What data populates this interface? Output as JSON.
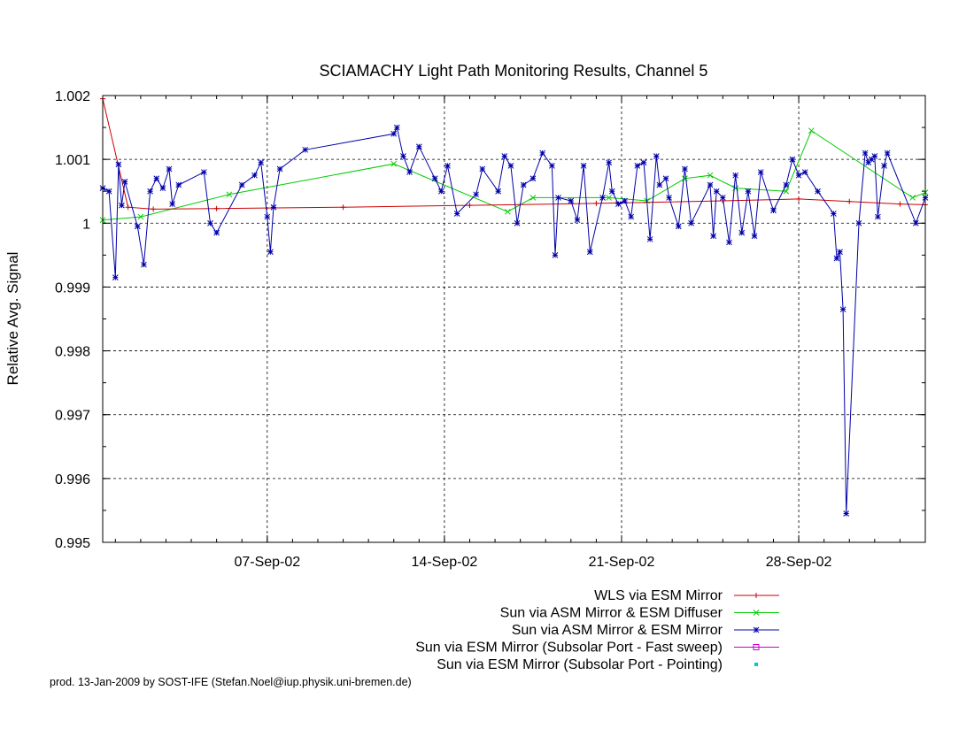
{
  "chart_data": {
    "type": "line",
    "title": "SCIAMACHY Light Path Monitoring Results, Channel 5",
    "xlabel": "",
    "ylabel": "Relative Avg. Signal",
    "xlim": [
      "2002-08-31T12:00",
      "2002-10-03T00:00"
    ],
    "ylim": [
      0.995,
      1.002
    ],
    "x_ticks": [
      {
        "date": "2002-09-07",
        "label": "07-Sep-02"
      },
      {
        "date": "2002-09-14",
        "label": "14-Sep-02"
      },
      {
        "date": "2002-09-21",
        "label": "21-Sep-02"
      },
      {
        "date": "2002-09-28",
        "label": "28-Sep-02"
      }
    ],
    "y_ticks": [
      {
        "value": 0.995,
        "label": "0.995"
      },
      {
        "value": 0.996,
        "label": "0.996"
      },
      {
        "value": 0.997,
        "label": "0.997"
      },
      {
        "value": 0.998,
        "label": "0.998"
      },
      {
        "value": 0.999,
        "label": "0.999"
      },
      {
        "value": 1.0,
        "label": "1"
      },
      {
        "value": 1.001,
        "label": "1.001"
      },
      {
        "value": 1.002,
        "label": "1.002"
      }
    ],
    "grid": true,
    "legend_position": "bottom-right",
    "series": [
      {
        "name": "WLS via ESM Mirror",
        "color": "#cc0000",
        "marker": "plus",
        "points": [
          [
            "2002-08-31T12:00",
            1.00195
          ],
          [
            "2002-09-01T12:00",
            1.00025
          ],
          [
            "2002-09-02T12:00",
            1.00022
          ],
          [
            "2002-09-05T00:00",
            1.00023
          ],
          [
            "2002-09-10T00:00",
            1.00025
          ],
          [
            "2002-09-15T00:00",
            1.00028
          ],
          [
            "2002-09-20T00:00",
            1.00031
          ],
          [
            "2002-09-25T00:00",
            1.00035
          ],
          [
            "2002-09-28T00:00",
            1.00038
          ],
          [
            "2002-09-30T00:00",
            1.00034
          ],
          [
            "2002-10-02T00:00",
            1.0003
          ],
          [
            "2002-10-03T00:00",
            1.00029
          ]
        ]
      },
      {
        "name": "Sun via ASM Mirror & ESM Diffuser",
        "color": "#00cc00",
        "marker": "cross",
        "points": [
          [
            "2002-08-31T12:00",
            1.00005
          ],
          [
            "2002-09-02T00:00",
            1.0001
          ],
          [
            "2002-09-05T12:00",
            1.00045
          ],
          [
            "2002-09-12T00:00",
            1.00093
          ],
          [
            "2002-09-16T12:00",
            1.00018
          ],
          [
            "2002-09-17T12:00",
            1.0004
          ],
          [
            "2002-09-20T12:00",
            1.0004
          ],
          [
            "2002-09-22T00:00",
            1.00035
          ],
          [
            "2002-09-23T12:00",
            1.0007
          ],
          [
            "2002-09-24T12:00",
            1.00075
          ],
          [
            "2002-09-25T12:00",
            1.00055
          ],
          [
            "2002-09-27T12:00",
            1.0005
          ],
          [
            "2002-09-28T12:00",
            1.00145
          ],
          [
            "2002-10-02T12:00",
            1.0004
          ],
          [
            "2002-10-03T00:00",
            1.00048
          ]
        ]
      },
      {
        "name": "Sun via ASM Mirror & ESM Mirror",
        "color": "#0000aa",
        "marker": "star",
        "points": [
          [
            "2002-08-31T12:00",
            1.00055
          ],
          [
            "2002-08-31T18:00",
            1.0005
          ],
          [
            "2002-09-01T00:00",
            0.99915
          ],
          [
            "2002-09-01T03:00",
            1.00092
          ],
          [
            "2002-09-01T06:00",
            1.00028
          ],
          [
            "2002-09-01T09:00",
            1.00065
          ],
          [
            "2002-09-01T21:00",
            0.99995
          ],
          [
            "2002-09-02T03:00",
            0.99935
          ],
          [
            "2002-09-02T09:00",
            1.0005
          ],
          [
            "2002-09-02T15:00",
            1.0007
          ],
          [
            "2002-09-02T21:00",
            1.00055
          ],
          [
            "2002-09-03T03:00",
            1.00085
          ],
          [
            "2002-09-03T06:00",
            1.0003
          ],
          [
            "2002-09-03T12:00",
            1.0006
          ],
          [
            "2002-09-04T12:00",
            1.0008
          ],
          [
            "2002-09-04T18:00",
            1.0
          ],
          [
            "2002-09-05T00:00",
            0.99985
          ],
          [
            "2002-09-06T00:00",
            1.0006
          ],
          [
            "2002-09-06T12:00",
            1.00075
          ],
          [
            "2002-09-06T18:00",
            1.00095
          ],
          [
            "2002-09-07T00:00",
            1.0001
          ],
          [
            "2002-09-07T03:00",
            0.99955
          ],
          [
            "2002-09-07T06:00",
            1.00025
          ],
          [
            "2002-09-07T12:00",
            1.00085
          ],
          [
            "2002-09-08T12:00",
            1.00115
          ],
          [
            "2002-09-12T00:00",
            1.0014
          ],
          [
            "2002-09-12T03:00",
            1.0015
          ],
          [
            "2002-09-12T09:00",
            1.00105
          ],
          [
            "2002-09-12T15:00",
            1.0008
          ],
          [
            "2002-09-13T00:00",
            1.0012
          ],
          [
            "2002-09-13T15:00",
            1.0007
          ],
          [
            "2002-09-13T21:00",
            1.0005
          ],
          [
            "2002-09-14T03:00",
            1.0009
          ],
          [
            "2002-09-14T12:00",
            1.00015
          ],
          [
            "2002-09-15T06:00",
            1.00045
          ],
          [
            "2002-09-15T12:00",
            1.00085
          ],
          [
            "2002-09-16T03:00",
            1.0005
          ],
          [
            "2002-09-16T09:00",
            1.00105
          ],
          [
            "2002-09-16T15:00",
            1.0009
          ],
          [
            "2002-09-16T21:00",
            1.0
          ],
          [
            "2002-09-17T03:00",
            1.0006
          ],
          [
            "2002-09-17T12:00",
            1.0007
          ],
          [
            "2002-09-17T21:00",
            1.0011
          ],
          [
            "2002-09-18T06:00",
            1.0009
          ],
          [
            "2002-09-18T09:00",
            0.9995
          ],
          [
            "2002-09-18T12:00",
            1.0004
          ],
          [
            "2002-09-19T00:00",
            1.00035
          ],
          [
            "2002-09-19T06:00",
            1.00005
          ],
          [
            "2002-09-19T12:00",
            1.0009
          ],
          [
            "2002-09-19T18:00",
            0.99955
          ],
          [
            "2002-09-20T06:00",
            1.0004
          ],
          [
            "2002-09-20T12:00",
            1.00095
          ],
          [
            "2002-09-20T15:00",
            1.0005
          ],
          [
            "2002-09-20T21:00",
            1.0003
          ],
          [
            "2002-09-21T03:00",
            1.00035
          ],
          [
            "2002-09-21T09:00",
            1.0001
          ],
          [
            "2002-09-21T15:00",
            1.0009
          ],
          [
            "2002-09-21T21:00",
            1.00095
          ],
          [
            "2002-09-22T03:00",
            0.99975
          ],
          [
            "2002-09-22T09:00",
            1.00105
          ],
          [
            "2002-09-22T12:00",
            1.0006
          ],
          [
            "2002-09-22T18:00",
            1.0007
          ],
          [
            "2002-09-22T21:00",
            1.0004
          ],
          [
            "2002-09-23T06:00",
            0.99995
          ],
          [
            "2002-09-23T12:00",
            1.00085
          ],
          [
            "2002-09-23T18:00",
            1.0
          ],
          [
            "2002-09-24T12:00",
            1.0006
          ],
          [
            "2002-09-24T15:00",
            0.9998
          ],
          [
            "2002-09-24T18:00",
            1.0005
          ],
          [
            "2002-09-25T00:00",
            1.0004
          ],
          [
            "2002-09-25T06:00",
            0.9997
          ],
          [
            "2002-09-25T12:00",
            1.00075
          ],
          [
            "2002-09-25T18:00",
            0.99985
          ],
          [
            "2002-09-26T00:00",
            1.0005
          ],
          [
            "2002-09-26T06:00",
            0.9998
          ],
          [
            "2002-09-26T12:00",
            1.0008
          ],
          [
            "2002-09-27T00:00",
            1.0002
          ],
          [
            "2002-09-27T12:00",
            1.0006
          ],
          [
            "2002-09-27T18:00",
            1.001
          ],
          [
            "2002-09-28T00:00",
            1.00075
          ],
          [
            "2002-09-28T06:00",
            1.0008
          ],
          [
            "2002-09-28T18:00",
            1.0005
          ],
          [
            "2002-09-29T09:00",
            1.00015
          ],
          [
            "2002-09-29T12:00",
            0.99945
          ],
          [
            "2002-09-29T15:00",
            0.99955
          ],
          [
            "2002-09-29T18:00",
            0.99865
          ],
          [
            "2002-09-29T21:00",
            0.99545
          ],
          [
            "2002-09-30T09:00",
            1.0
          ],
          [
            "2002-09-30T15:00",
            1.0011
          ],
          [
            "2002-09-30T18:00",
            1.00095
          ],
          [
            "2002-09-30T21:00",
            1.001
          ],
          [
            "2002-10-01T00:00",
            1.00105
          ],
          [
            "2002-10-01T03:00",
            1.0001
          ],
          [
            "2002-10-01T09:00",
            1.0009
          ],
          [
            "2002-10-01T12:00",
            1.0011
          ],
          [
            "2002-10-02T15:00",
            1.0
          ],
          [
            "2002-10-03T00:00",
            1.0004
          ]
        ]
      },
      {
        "name": "Sun via ESM Mirror (Subsolar Port - Fast sweep)",
        "color": "#cc00cc",
        "marker": "square",
        "points": []
      },
      {
        "name": "Sun via ESM Mirror (Subsolar Port - Pointing)",
        "color": "#00cccc",
        "marker": "dot",
        "points": []
      }
    ]
  },
  "footer": {
    "credit": "prod. 13-Jan-2009 by SOST-IFE (Stefan.Noel@iup.physik.uni-bremen.de)"
  }
}
